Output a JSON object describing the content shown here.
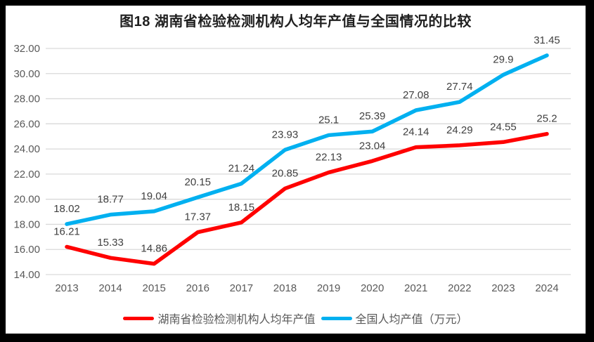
{
  "chart_data": {
    "type": "line",
    "title": "图18 湖南省检验检测机构人均年产值与全国情况的比较",
    "categories": [
      "2013",
      "2014",
      "2015",
      "2016",
      "2017",
      "2018",
      "2019",
      "2020",
      "2021",
      "2022",
      "2023",
      "2024"
    ],
    "series": [
      {
        "name": "湖南省检验检测机构人均年产值",
        "color": "#FF0000",
        "values": [
          16.21,
          15.33,
          14.86,
          17.37,
          18.15,
          20.85,
          22.13,
          23.04,
          24.14,
          24.29,
          24.55,
          25.2
        ],
        "labels": [
          "16.21",
          "15.33",
          "14.86",
          "17.37",
          "18.15",
          "20.85",
          "22.13",
          "23.04",
          "24.14",
          "24.29",
          "24.55",
          "25.2"
        ]
      },
      {
        "name": "全国人均产值（万元）",
        "color": "#00B0F0",
        "values": [
          18.02,
          18.77,
          19.04,
          20.15,
          21.24,
          23.93,
          25.1,
          25.39,
          27.08,
          27.74,
          29.9,
          31.45
        ],
        "labels": [
          "18.02",
          "18.77",
          "19.04",
          "20.15",
          "21.24",
          "23.93",
          "25.1",
          "25.39",
          "27.08",
          "27.74",
          "29.9",
          "31.45"
        ]
      }
    ],
    "ylim": [
      14,
      32
    ],
    "ytick_step": 2,
    "yticks": [
      "32.00",
      "30.00",
      "28.00",
      "26.00",
      "24.00",
      "22.00",
      "20.00",
      "18.00",
      "16.00",
      "14.00"
    ],
    "xlabel": "",
    "ylabel": "",
    "grid": true,
    "legend_position": "bottom",
    "colors": {
      "gridline": "#D9D9D9",
      "axis_label": "#595959",
      "data_label": "#404040",
      "title": "#1F1F1F",
      "frame": "#000000",
      "background": "#FFFFFF"
    }
  }
}
